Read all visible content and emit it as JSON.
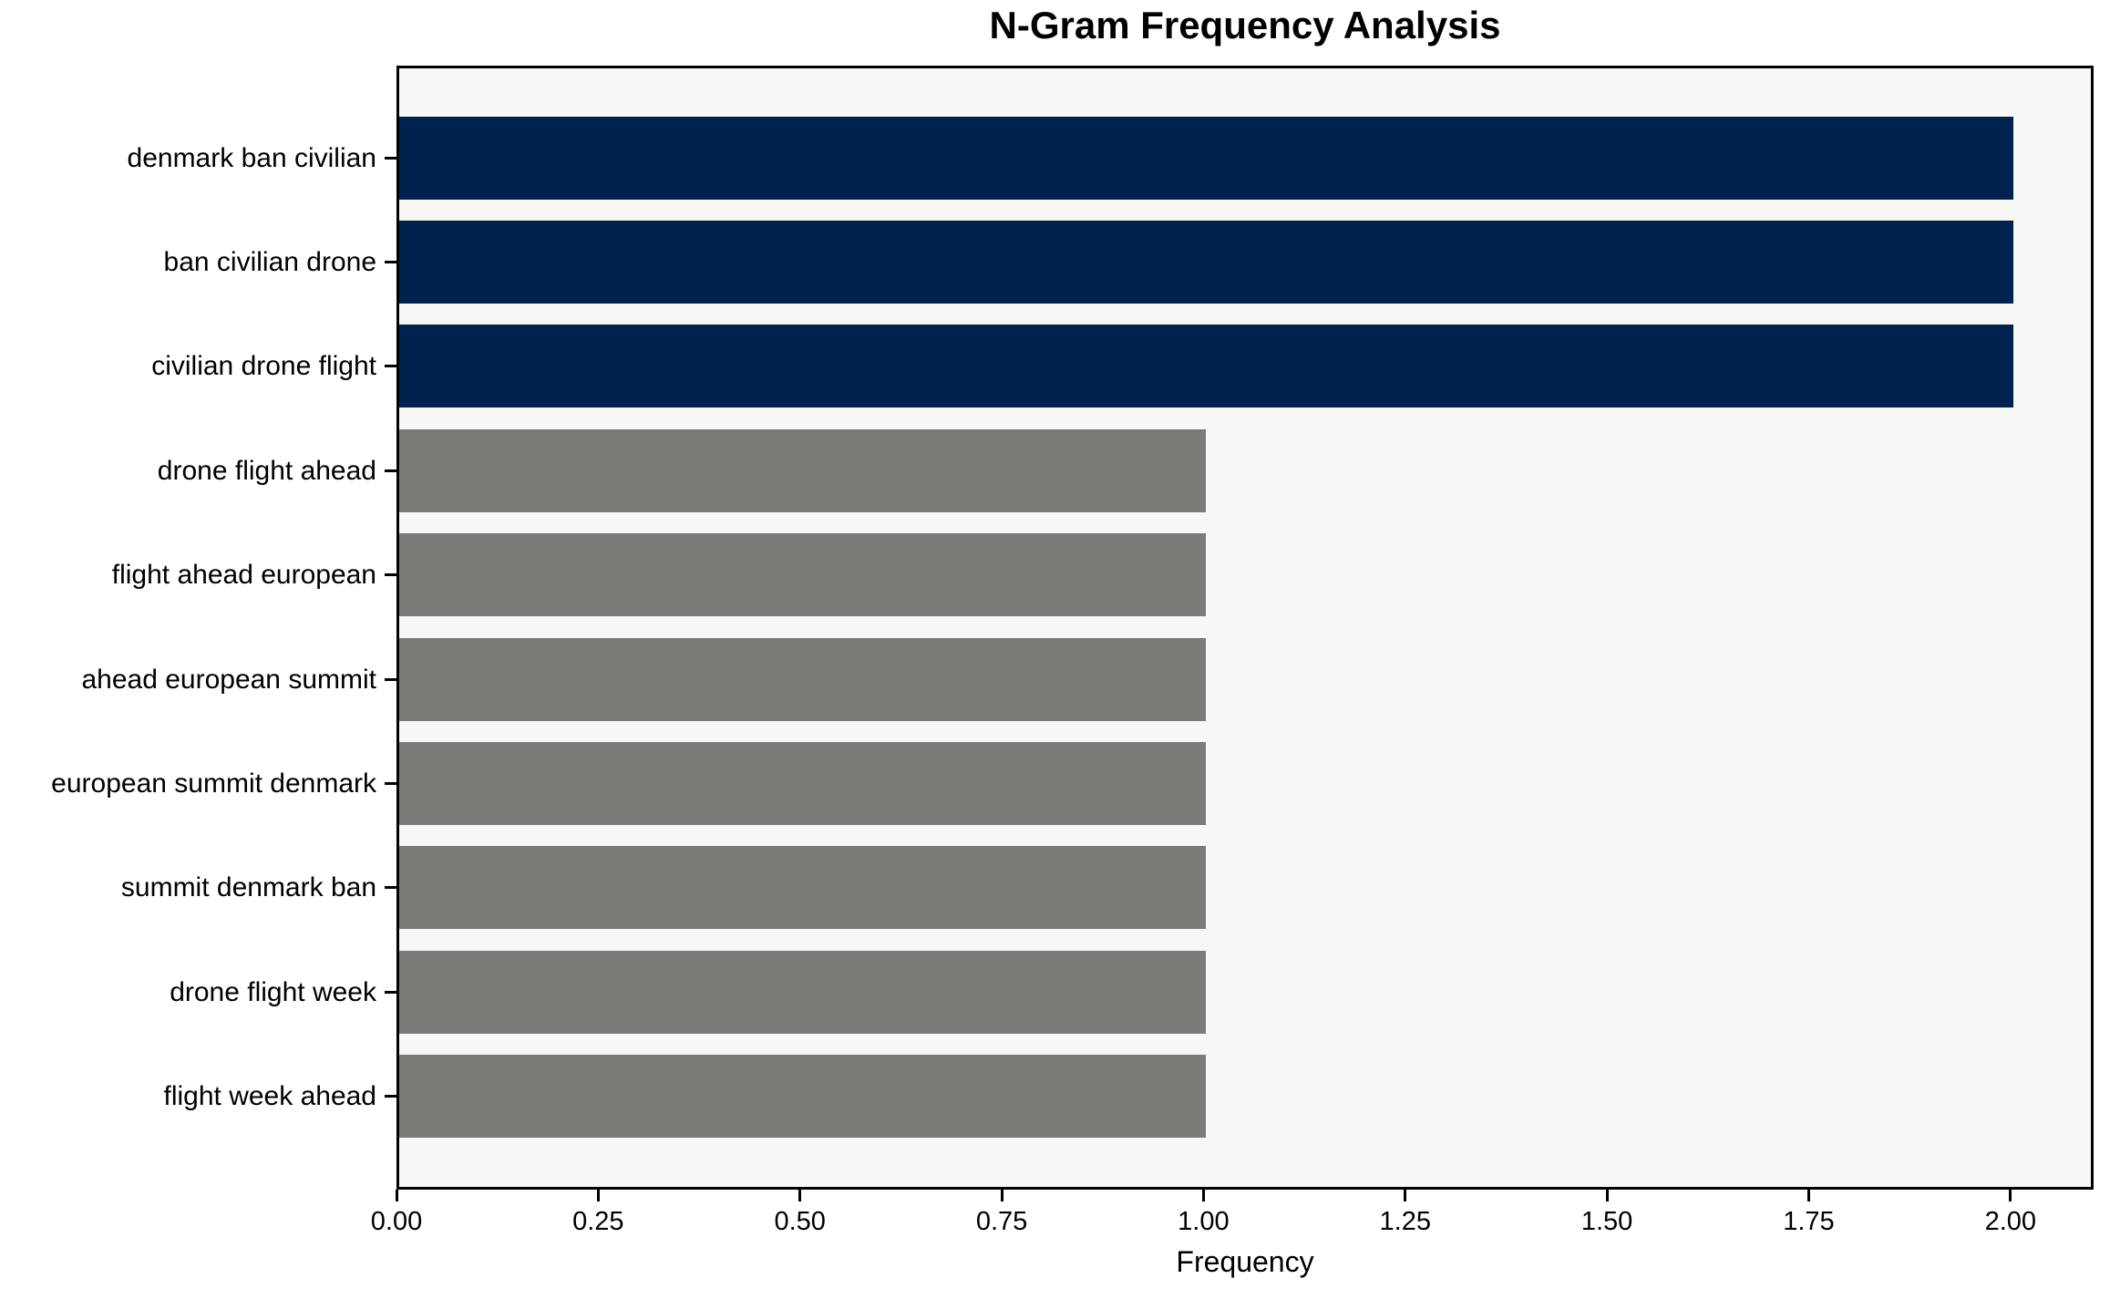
{
  "chart_data": {
    "type": "bar",
    "orientation": "horizontal",
    "title": "N-Gram Frequency Analysis",
    "xlabel": "Frequency",
    "ylabel": "",
    "categories": [
      "denmark ban civilian",
      "ban civilian drone",
      "civilian drone flight",
      "drone flight ahead",
      "flight ahead european",
      "ahead european summit",
      "european summit denmark",
      "summit denmark ban",
      "drone flight week",
      "flight week ahead"
    ],
    "values": [
      2,
      2,
      2,
      1,
      1,
      1,
      1,
      1,
      1,
      1
    ],
    "bar_colors": [
      "highlight",
      "highlight",
      "highlight",
      "default",
      "default",
      "default",
      "default",
      "default",
      "default",
      "default"
    ],
    "xtick_labels": [
      "0.00",
      "0.25",
      "0.50",
      "0.75",
      "1.00",
      "1.25",
      "1.50",
      "1.75",
      "2.00"
    ],
    "xtick_values": [
      0,
      0.25,
      0.5,
      0.75,
      1.0,
      1.25,
      1.5,
      1.75,
      2.0
    ],
    "xlim": [
      0,
      2.103
    ],
    "grid": false,
    "legend_position": "none",
    "colors": {
      "highlight": "#00224e",
      "default": "#7b7a77",
      "plot_background": "#f7f7f6",
      "figure_background": "#ffffff",
      "spine": "#000000",
      "text": "#000000"
    }
  }
}
